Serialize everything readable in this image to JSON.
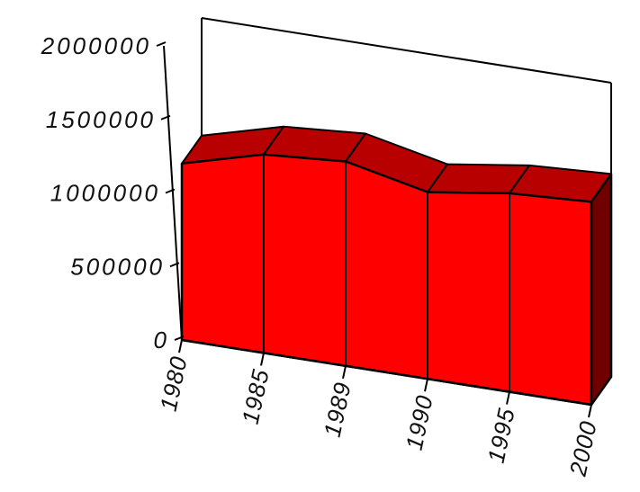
{
  "chart_data": {
    "type": "area",
    "three_d": true,
    "categories": [
      "1980",
      "1985",
      "1989",
      "1990",
      "1995",
      "2000"
    ],
    "values": [
      1200000,
      1350000,
      1390000,
      1270000,
      1350000,
      1380000
    ],
    "yticks": [
      "0",
      "500000",
      "1000000",
      "1500000",
      "2000000"
    ],
    "ylim": [
      0,
      2000000
    ],
    "title": "",
    "xlabel": "",
    "ylabel": "",
    "grid": false,
    "legend": "none",
    "colors": {
      "front": "#ff0000",
      "top": "#b80000",
      "side": "#700000",
      "axis": "#000000"
    }
  }
}
